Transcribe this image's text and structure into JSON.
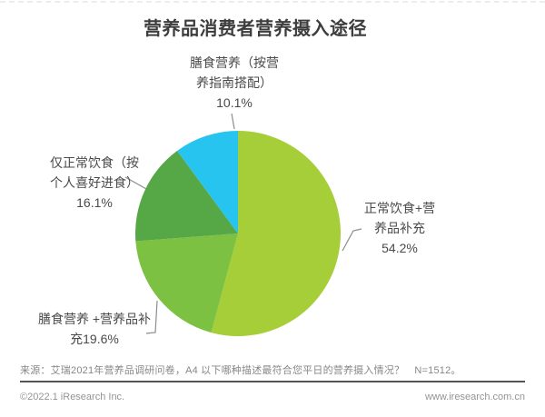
{
  "page": {
    "title": "营养品消费者营养摄入途径",
    "source_note": "来源：艾瑞2021年营养品调研问卷，A4 以下哪种描述最符合您平日的营养摄入情况？　N=1512。",
    "footer_left": "©2022.1 iResearch Inc.",
    "footer_right": "www.iresearch.com.cn"
  },
  "colors": {
    "title_text": "#3d3d3d",
    "label_text": "#4a4a4a",
    "leader_line": "#8c8c8c",
    "divider": "#555555",
    "footer_text": "#949494"
  },
  "chart_data": {
    "type": "pie",
    "title": "营养品消费者营养摄入途径",
    "unit": "%",
    "start_angle": "12-oclock",
    "direction": "clockwise",
    "slices": [
      {
        "label": "正常饮食+营养品补充",
        "value": 54.2,
        "color": "#a6ce39"
      },
      {
        "label": "膳食营养 +营养品补充",
        "value": 19.6,
        "color": "#7cc142"
      },
      {
        "label": "仅正常饮食（按个人喜好进食）",
        "value": 16.1,
        "color": "#55a845"
      },
      {
        "label": "膳食营养（按营养指南搭配）",
        "value": 10.1,
        "color": "#27c4ef"
      }
    ]
  },
  "callouts": {
    "top": {
      "line1": "膳食营养（按营",
      "line2": "养指南搭配）",
      "value": "10.1%"
    },
    "left": {
      "line1": "仅正常饮食（按",
      "line2": "个人喜好进食）",
      "value": "16.1%"
    },
    "right": {
      "line1": "正常饮食+营",
      "line2": "养品补充",
      "value": "54.2%"
    },
    "bottom_left": {
      "line1": "膳食营养 +营养品补",
      "line2": "充19.6%"
    }
  }
}
